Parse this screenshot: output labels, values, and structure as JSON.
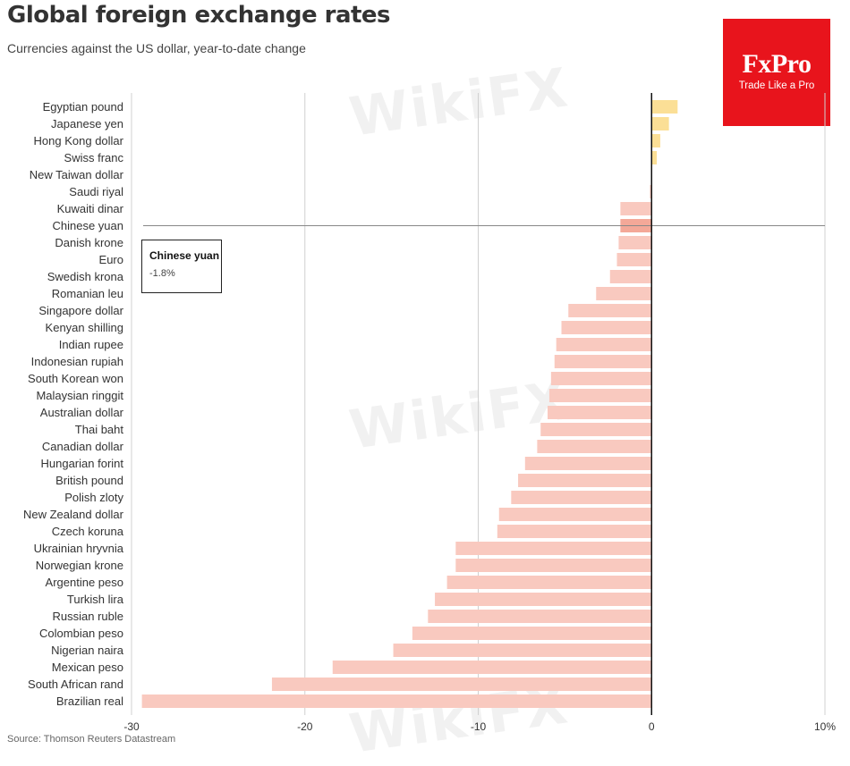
{
  "title": "Global foreign exchange rates",
  "subtitle": "Currencies against the US dollar, year-to-date change",
  "source": "Source: Thomson Reuters Datastream",
  "logo": {
    "brand": "FxPro",
    "tagline": "Trade Like a Pro",
    "color": "#e8141c"
  },
  "watermark": "WikiFX",
  "tooltip": {
    "name": "Chinese yuan",
    "value": "-1.8%"
  },
  "colors": {
    "positive": "#fbdf96",
    "negative": "#f9c9bf",
    "highlight": "#f4a898"
  },
  "chart_data": {
    "type": "bar",
    "orientation": "horizontal",
    "categories": [
      "Egyptian pound",
      "Japanese yen",
      "Hong Kong dollar",
      "Swiss franc",
      "New Taiwan dollar",
      "Saudi riyal",
      "Kuwaiti dinar",
      "Chinese yuan",
      "Danish krone",
      "Euro",
      "Swedish krona",
      "Romanian leu",
      "Singapore dollar",
      "Kenyan shilling",
      "Indian rupee",
      "Indonesian rupiah",
      "South Korean won",
      "Malaysian ringgit",
      "Australian dollar",
      "Thai baht",
      "Canadian dollar",
      "Hungarian forint",
      "British pound",
      "Polish zloty",
      "New Zealand dollar",
      "Czech koruna",
      "Ukrainian hryvnia",
      "Norwegian krone",
      "Argentine peso",
      "Turkish lira",
      "Russian ruble",
      "Colombian peso",
      "Nigerian naira",
      "Mexican peso",
      "South African rand",
      "Brazilian real"
    ],
    "values": [
      1.5,
      1.0,
      0.5,
      0.3,
      0.0,
      -0.1,
      -1.8,
      -1.8,
      -1.9,
      -2.0,
      -2.4,
      -3.2,
      -4.8,
      -5.2,
      -5.5,
      -5.6,
      -5.8,
      -5.9,
      -6.0,
      -6.4,
      -6.6,
      -7.3,
      -7.7,
      -8.1,
      -8.8,
      -8.9,
      -11.3,
      -11.3,
      -11.8,
      -12.5,
      -12.9,
      -13.8,
      -14.9,
      -18.4,
      -21.9,
      -29.4
    ],
    "highlight": "Chinese yuan",
    "xlim": [
      -30,
      10
    ],
    "xticks": [
      "-30",
      "-20",
      "-10",
      "0",
      "10%"
    ],
    "grid": true
  }
}
